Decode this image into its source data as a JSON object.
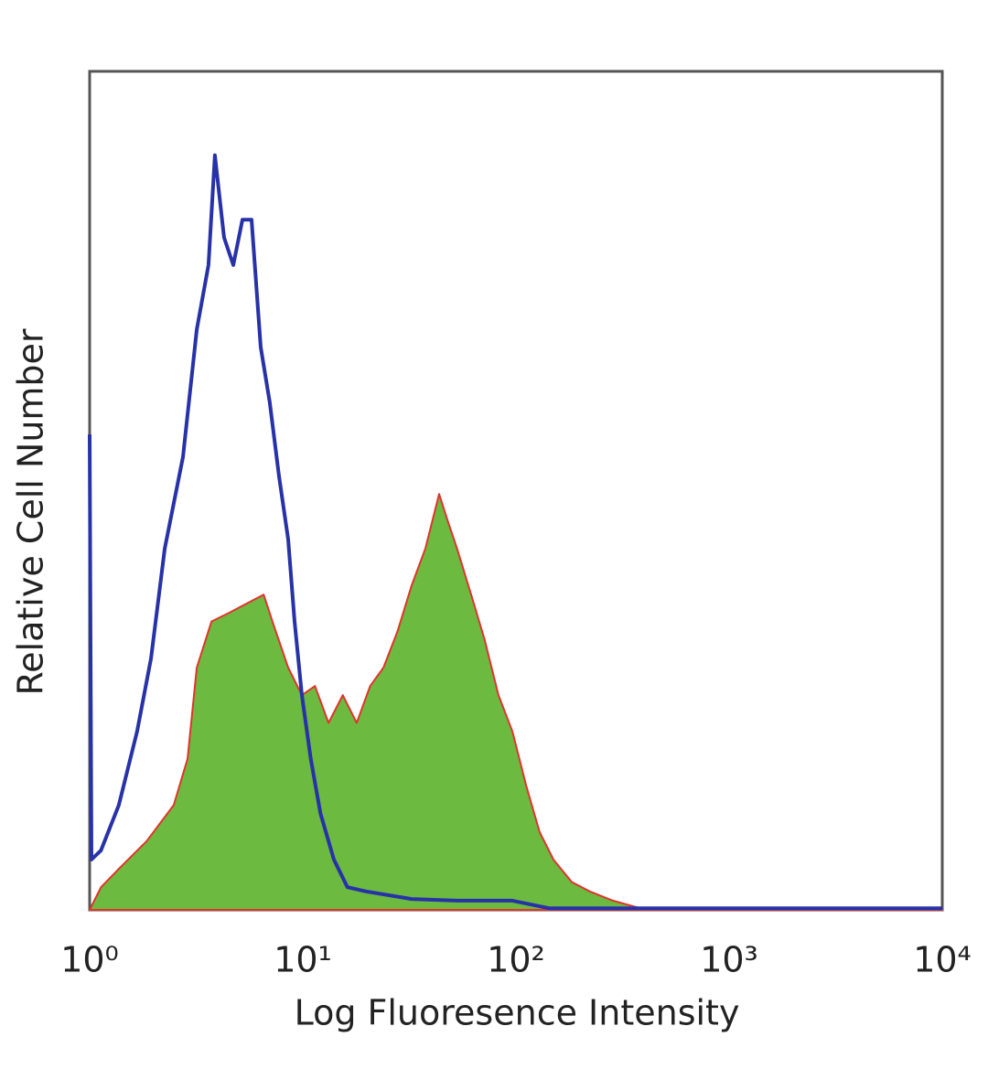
{
  "chart_data": {
    "type": "histogram-overlay",
    "x_label": "Log Fluoresence Intensity",
    "y_label": "Relative Cell Number",
    "xscale": "log",
    "xlim": [
      1,
      10000
    ],
    "xticks": [
      {
        "value": 1,
        "label": "10⁰"
      },
      {
        "value": 10,
        "label": "10¹"
      },
      {
        "value": 100,
        "label": "10²"
      },
      {
        "value": 1000,
        "label": "10³"
      },
      {
        "value": 10000,
        "label": "10⁴"
      }
    ],
    "ylim": [
      0,
      100
    ],
    "series": [
      {
        "color": "#6cba3f",
        "edge_color": "#e0342c",
        "fill": true,
        "x": [
          1,
          1.13,
          1.37,
          1.85,
          2.48,
          2.88,
          3.18,
          3.73,
          4.49,
          5.43,
          6.55,
          7.2,
          8.54,
          9.9,
          11.4,
          13.2,
          15.4,
          17.9,
          20.7,
          23.9,
          27.9,
          32.4,
          37.6,
          43.6,
          48.0,
          52.9,
          61.6,
          71.3,
          82.8,
          96.2,
          112,
          129,
          150,
          183,
          222,
          285,
          383,
          10000
        ],
        "values": [
          0,
          2.7,
          4.9,
          8.2,
          12.5,
          18.0,
          28.9,
          34.4,
          35.4,
          36.5,
          37.6,
          34.4,
          28.9,
          25.6,
          26.7,
          22.3,
          25.6,
          22.3,
          26.7,
          28.9,
          33.3,
          38.7,
          43.1,
          49.6,
          46.3,
          43.1,
          37.6,
          32.2,
          25.6,
          21.3,
          14.7,
          9.3,
          6.0,
          3.3,
          2.2,
          1.1,
          0.2,
          0
        ]
      },
      {
        "color": "#2832a8",
        "fill": false,
        "x": [
          1,
          1.02,
          1.13,
          1.37,
          1.67,
          1.94,
          2.25,
          2.74,
          3.18,
          3.61,
          3.87,
          4.27,
          4.72,
          5.21,
          5.75,
          6.35,
          7.0,
          7.73,
          8.54,
          9.15,
          9.9,
          10.9,
          12.1,
          14.0,
          16.2,
          19.8,
          32.4,
          53.1,
          96.2,
          143,
          10000
        ],
        "values": [
          56.7,
          6.0,
          7.1,
          12.5,
          21.3,
          30.0,
          43.1,
          54.0,
          69.2,
          76.9,
          90.0,
          80.2,
          76.9,
          82.3,
          82.3,
          67.1,
          60.5,
          51.8,
          44.2,
          34.4,
          25.6,
          18.0,
          11.5,
          6.0,
          2.7,
          2.2,
          1.3,
          1.1,
          1.1,
          0.2,
          0.2
        ]
      }
    ]
  }
}
